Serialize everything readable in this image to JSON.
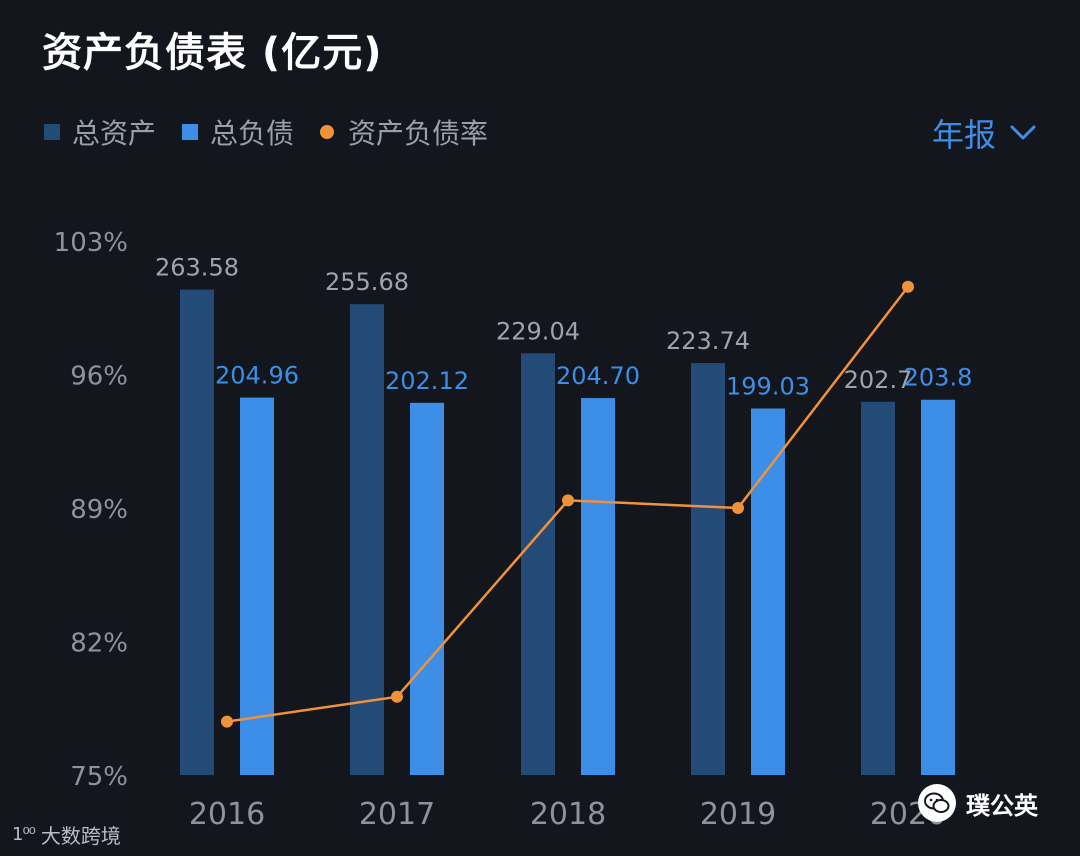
{
  "header": {
    "title": "资产负债表 (亿元)",
    "period_label": "年报",
    "period_icon": "chevron-down-icon"
  },
  "legend": [
    {
      "label": "总资产",
      "color": "#244a77",
      "marker": "square"
    },
    {
      "label": "总负债",
      "color": "#3d8ee6",
      "marker": "square"
    },
    {
      "label": "资产负债率",
      "color": "#f0923a",
      "marker": "dot"
    }
  ],
  "watermarks": {
    "left_logo": "1⁰⁰",
    "left_text": "大数跨境",
    "right_text": "璞公英",
    "right_icon": "wechat-icon"
  },
  "chart_data": {
    "type": "bar",
    "categories": [
      "2016",
      "2017",
      "2018",
      "2019",
      "2020"
    ],
    "series": [
      {
        "name": "总资产",
        "type": "bar",
        "color": "#244a77",
        "values": [
          263.58,
          255.68,
          229.04,
          223.74,
          202.7
        ],
        "labels": [
          "263.58",
          "255.68",
          "229.04",
          "223.74",
          "202.7"
        ]
      },
      {
        "name": "总负债",
        "type": "bar",
        "color": "#3d8ee6",
        "values": [
          204.96,
          202.12,
          204.7,
          199.03,
          203.8
        ],
        "labels": [
          "204.96",
          "202.12",
          "204.70",
          "199.03",
          "203.8"
        ]
      },
      {
        "name": "资产负债率",
        "type": "line",
        "color": "#f0923a",
        "values": [
          77.8,
          79.1,
          89.4,
          89.0,
          100.6
        ]
      }
    ],
    "y_axis": {
      "ticks": [
        "103%",
        "96%",
        "89%",
        "82%",
        "75%"
      ],
      "ylim": [
        75,
        103
      ],
      "unit": "%"
    },
    "bar_scale": {
      "min": 0,
      "max": 290
    }
  }
}
